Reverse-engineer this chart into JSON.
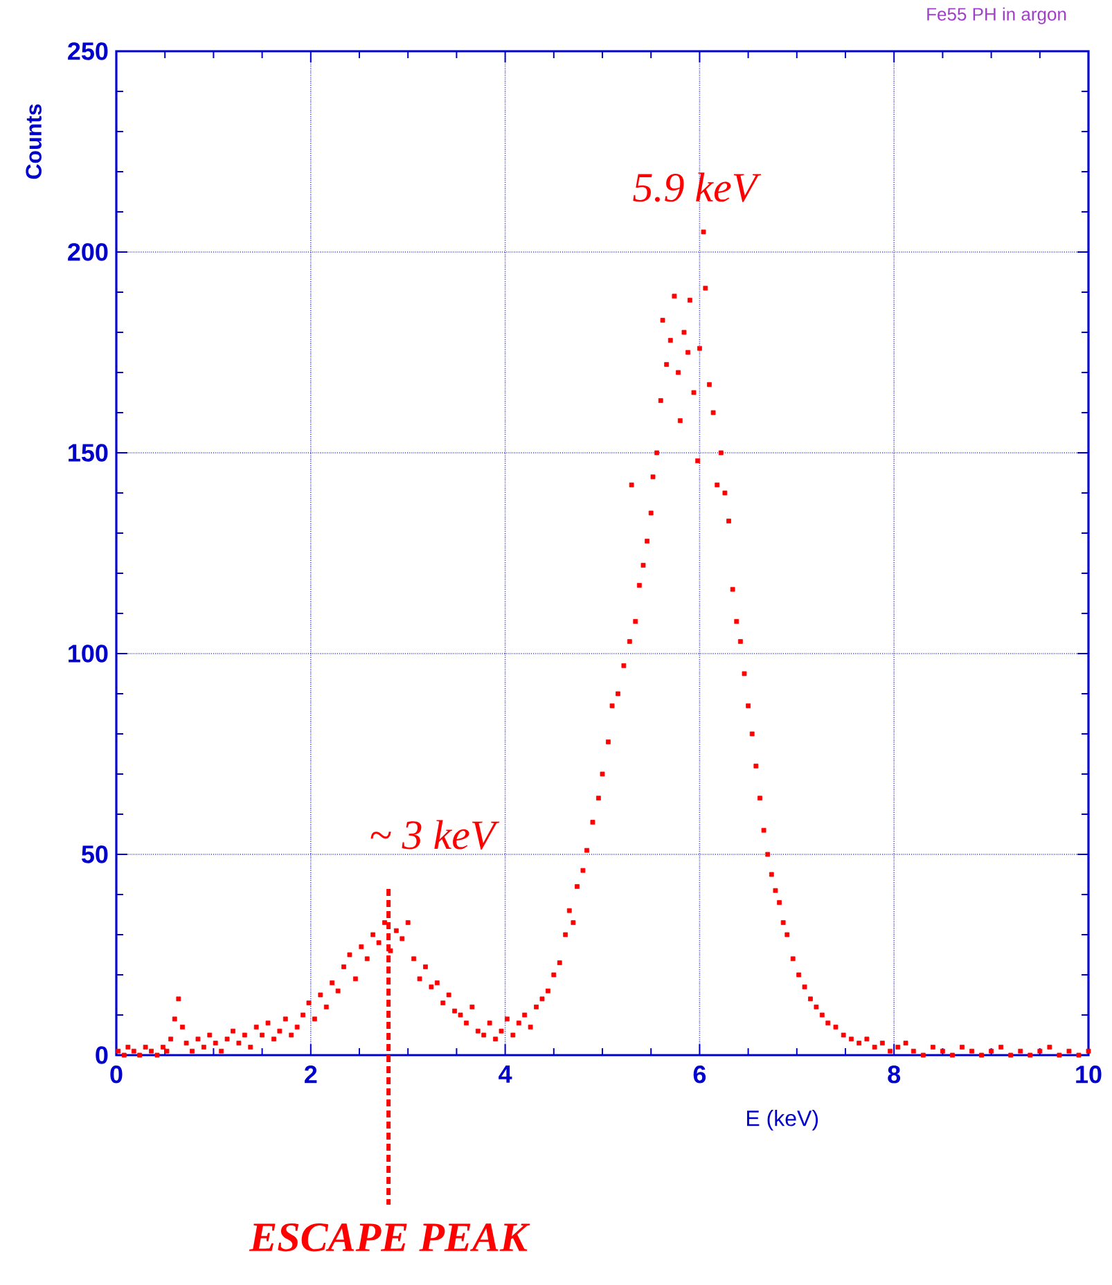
{
  "chart_data": {
    "type": "scatter",
    "title": "Fe55 PH in argon",
    "xlabel": "E (keV)",
    "ylabel": "Counts",
    "x": [
      0.02,
      0.08,
      0.12,
      0.18,
      0.24,
      0.3,
      0.36,
      0.42,
      0.48,
      0.52,
      0.56,
      0.6,
      0.64,
      0.68,
      0.72,
      0.78,
      0.84,
      0.9,
      0.96,
      1.02,
      1.08,
      1.14,
      1.2,
      1.26,
      1.32,
      1.38,
      1.44,
      1.5,
      1.56,
      1.62,
      1.68,
      1.74,
      1.8,
      1.86,
      1.92,
      1.98,
      2.04,
      2.1,
      2.16,
      2.22,
      2.28,
      2.34,
      2.4,
      2.46,
      2.52,
      2.58,
      2.64,
      2.7,
      2.76,
      2.82,
      2.88,
      2.94,
      3.0,
      3.06,
      3.12,
      3.18,
      3.24,
      3.3,
      3.36,
      3.42,
      3.48,
      3.54,
      3.6,
      3.66,
      3.72,
      3.78,
      3.84,
      3.9,
      3.96,
      4.02,
      4.08,
      4.14,
      4.2,
      4.26,
      4.32,
      4.38,
      4.44,
      4.5,
      4.56,
      4.62,
      4.66,
      4.7,
      4.74,
      4.8,
      4.84,
      4.9,
      4.96,
      5.0,
      5.06,
      5.1,
      5.16,
      5.22,
      5.28,
      5.3,
      5.34,
      5.38,
      5.42,
      5.46,
      5.5,
      5.52,
      5.56,
      5.6,
      5.62,
      5.66,
      5.7,
      5.74,
      5.78,
      5.8,
      5.84,
      5.88,
      5.9,
      5.94,
      5.98,
      6.0,
      6.04,
      6.06,
      6.1,
      6.14,
      6.18,
      6.22,
      6.26,
      6.3,
      6.34,
      6.38,
      6.42,
      6.46,
      6.5,
      6.54,
      6.58,
      6.62,
      6.66,
      6.7,
      6.74,
      6.78,
      6.82,
      6.86,
      6.9,
      6.96,
      7.02,
      7.08,
      7.14,
      7.2,
      7.26,
      7.32,
      7.4,
      7.48,
      7.56,
      7.64,
      7.72,
      7.8,
      7.88,
      7.96,
      8.04,
      8.12,
      8.2,
      8.3,
      8.4,
      8.5,
      8.6,
      8.7,
      8.8,
      8.9,
      9.0,
      9.1,
      9.2,
      9.3,
      9.4,
      9.5,
      9.6,
      9.7,
      9.8,
      9.9,
      10.0
    ],
    "values": [
      1,
      0,
      2,
      1,
      0,
      2,
      1,
      0,
      2,
      1,
      4,
      9,
      14,
      7,
      3,
      1,
      4,
      2,
      5,
      3,
      1,
      4,
      6,
      3,
      5,
      2,
      7,
      5,
      8,
      4,
      6,
      9,
      5,
      7,
      10,
      13,
      9,
      15,
      12,
      18,
      16,
      22,
      25,
      19,
      27,
      24,
      30,
      28,
      33,
      26,
      31,
      29,
      33,
      24,
      19,
      22,
      17,
      18,
      13,
      15,
      11,
      10,
      8,
      12,
      6,
      5,
      8,
      4,
      6,
      9,
      5,
      8,
      10,
      7,
      12,
      14,
      16,
      20,
      23,
      30,
      36,
      33,
      42,
      46,
      51,
      58,
      64,
      70,
      78,
      87,
      90,
      97,
      103,
      142,
      108,
      117,
      122,
      128,
      135,
      144,
      150,
      163,
      183,
      172,
      178,
      189,
      170,
      158,
      180,
      175,
      188,
      165,
      148,
      176,
      205,
      191,
      167,
      160,
      142,
      150,
      140,
      133,
      116,
      108,
      103,
      95,
      87,
      80,
      72,
      64,
      56,
      50,
      45,
      41,
      38,
      33,
      30,
      24,
      20,
      17,
      14,
      12,
      10,
      8,
      7,
      5,
      4,
      3,
      4,
      2,
      3,
      1,
      2,
      3,
      1,
      0,
      2,
      1,
      0,
      2,
      1,
      0,
      1,
      2,
      0,
      1,
      0,
      1,
      2,
      0,
      1,
      0,
      1
    ],
    "color": "#ff0000",
    "marker": "square",
    "grid": true,
    "xlim": [
      0,
      10
    ],
    "xticks": [
      0,
      2,
      4,
      6,
      8,
      10
    ],
    "ylim": [
      0,
      250
    ],
    "yticks": [
      0,
      50,
      100,
      150,
      200,
      250
    ],
    "annotations": [
      "5.9 keV",
      "~ 3 keV"
    ],
    "ref_lines": [
      {
        "axis": "x",
        "value": 2.8,
        "label": "ESCAPE PEAK",
        "color": "#ff0000",
        "line_style": "dashed"
      }
    ]
  }
}
